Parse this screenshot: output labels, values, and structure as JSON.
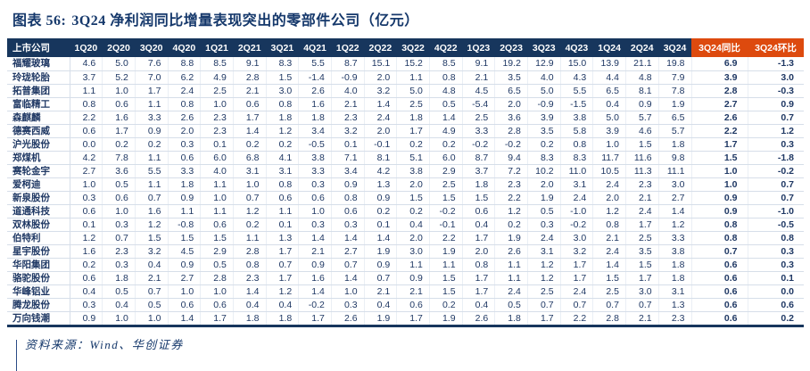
{
  "header": {
    "figure_label": "图表 56:",
    "title": "3Q24 净利润同比增量表现突出的零部件公司（亿元）"
  },
  "footer": {
    "source": "资料来源：Wind、华创证券"
  },
  "colors": {
    "header_bg": "#17365D",
    "highlight_bg": "#DD4A0E",
    "text": "#1F3864",
    "title": "#15386B"
  },
  "chart_data": {
    "type": "table",
    "title": "3Q24 净利润同比增量表现突出的零部件公司（亿元）",
    "unit": "亿元",
    "columns": [
      "上市公司",
      "1Q20",
      "2Q20",
      "3Q20",
      "4Q20",
      "1Q21",
      "2Q21",
      "3Q21",
      "4Q21",
      "1Q22",
      "2Q22",
      "3Q22",
      "4Q22",
      "1Q23",
      "2Q23",
      "3Q23",
      "4Q23",
      "1Q24",
      "2Q24",
      "3Q24",
      "3Q24同比",
      "3Q24环比"
    ],
    "highlight_columns": [
      "3Q24同比",
      "3Q24环比"
    ],
    "rows": [
      {
        "name": "福耀玻璃",
        "values": [
          4.6,
          5.0,
          7.6,
          8.8,
          8.5,
          9.1,
          8.3,
          5.5,
          8.7,
          15.1,
          15.2,
          8.5,
          9.1,
          19.2,
          12.9,
          15.0,
          13.9,
          21.1,
          19.8,
          6.9,
          -1.3
        ]
      },
      {
        "name": "玲珑轮胎",
        "values": [
          3.7,
          5.2,
          7.0,
          6.2,
          4.9,
          2.8,
          1.5,
          -1.4,
          -0.9,
          2.0,
          1.1,
          0.8,
          2.1,
          3.5,
          4.0,
          4.3,
          4.4,
          4.8,
          7.9,
          3.9,
          3.0
        ]
      },
      {
        "name": "拓普集团",
        "values": [
          1.1,
          1.0,
          1.7,
          2.4,
          2.5,
          2.1,
          3.0,
          2.6,
          4.0,
          3.2,
          5.0,
          4.8,
          4.5,
          6.5,
          5.0,
          5.5,
          6.5,
          8.1,
          7.8,
          2.8,
          -0.3
        ]
      },
      {
        "name": "富临精工",
        "values": [
          0.8,
          0.6,
          1.1,
          0.8,
          1.0,
          0.6,
          0.8,
          1.6,
          2.1,
          1.4,
          2.5,
          0.5,
          -5.4,
          2.0,
          -0.9,
          -1.5,
          0.4,
          0.9,
          1.9,
          2.7,
          0.9
        ]
      },
      {
        "name": "森麒麟",
        "values": [
          2.2,
          1.6,
          3.3,
          2.6,
          2.3,
          1.7,
          1.8,
          1.8,
          2.3,
          2.4,
          1.8,
          1.4,
          2.5,
          3.6,
          3.9,
          3.8,
          5.0,
          5.7,
          6.5,
          2.6,
          0.7
        ]
      },
      {
        "name": "德赛西威",
        "values": [
          0.6,
          1.7,
          0.9,
          2.0,
          2.3,
          1.4,
          1.2,
          3.4,
          3.2,
          2.0,
          1.7,
          4.9,
          3.3,
          2.8,
          3.5,
          5.8,
          3.9,
          4.6,
          5.7,
          2.2,
          1.2
        ]
      },
      {
        "name": "沪光股份",
        "values": [
          0.0,
          0.2,
          0.2,
          0.3,
          0.1,
          0.2,
          0.2,
          -0.5,
          0.1,
          -0.1,
          0.2,
          0.2,
          -0.2,
          -0.2,
          0.2,
          0.8,
          1.0,
          1.5,
          1.8,
          1.7,
          0.3
        ]
      },
      {
        "name": "郑煤机",
        "values": [
          4.2,
          7.8,
          1.1,
          0.6,
          6.0,
          6.8,
          4.1,
          3.8,
          7.1,
          8.1,
          5.1,
          6.0,
          8.7,
          9.4,
          8.3,
          8.3,
          11.7,
          11.6,
          9.8,
          1.5,
          -1.8
        ]
      },
      {
        "name": "赛轮金宇",
        "values": [
          2.7,
          3.6,
          5.5,
          3.3,
          4.0,
          3.1,
          3.1,
          3.3,
          3.4,
          4.2,
          3.8,
          2.9,
          3.7,
          7.2,
          10.2,
          11.0,
          10.5,
          11.3,
          11.1,
          1.0,
          -0.2
        ]
      },
      {
        "name": "爱柯迪",
        "values": [
          1.0,
          0.5,
          1.1,
          1.8,
          1.1,
          1.0,
          0.8,
          0.3,
          0.9,
          1.3,
          2.0,
          2.5,
          1.8,
          2.3,
          2.0,
          3.1,
          2.4,
          2.3,
          3.0,
          1.0,
          0.7
        ]
      },
      {
        "name": "新泉股份",
        "values": [
          0.3,
          0.6,
          0.7,
          0.9,
          1.0,
          0.7,
          0.6,
          0.6,
          0.8,
          0.9,
          1.5,
          1.5,
          1.5,
          2.2,
          1.9,
          2.4,
          2.0,
          2.1,
          2.7,
          0.9,
          0.7
        ]
      },
      {
        "name": "道通科技",
        "values": [
          0.6,
          1.0,
          1.6,
          1.1,
          1.1,
          1.2,
          1.1,
          1.0,
          0.6,
          0.2,
          0.2,
          -0.2,
          0.6,
          1.2,
          0.5,
          -1.0,
          1.2,
          2.4,
          1.4,
          0.9,
          -1.0
        ]
      },
      {
        "name": "双林股份",
        "values": [
          0.1,
          0.3,
          1.2,
          -0.8,
          0.6,
          0.2,
          0.1,
          0.3,
          0.3,
          0.1,
          0.4,
          -0.1,
          0.4,
          0.2,
          0.3,
          -0.2,
          0.8,
          1.7,
          1.2,
          0.8,
          -0.5
        ]
      },
      {
        "name": "伯特利",
        "values": [
          1.2,
          0.7,
          1.5,
          1.5,
          1.5,
          1.1,
          1.3,
          1.4,
          1.4,
          1.4,
          2.0,
          2.2,
          1.7,
          1.9,
          2.4,
          3.0,
          2.1,
          2.5,
          3.3,
          0.8,
          0.8
        ]
      },
      {
        "name": "星宇股份",
        "values": [
          1.6,
          2.3,
          3.2,
          4.5,
          2.9,
          2.8,
          1.7,
          2.1,
          2.7,
          1.9,
          3.0,
          1.9,
          2.0,
          2.6,
          3.1,
          3.2,
          2.4,
          3.5,
          3.8,
          0.7,
          0.3
        ]
      },
      {
        "name": "华阳集团",
        "values": [
          0.2,
          0.3,
          0.4,
          0.9,
          0.5,
          0.8,
          0.7,
          0.9,
          0.7,
          0.9,
          1.1,
          1.1,
          0.8,
          1.1,
          1.2,
          1.7,
          1.4,
          1.5,
          1.8,
          0.6,
          0.3
        ]
      },
      {
        "name": "骆驼股份",
        "values": [
          0.6,
          1.8,
          2.1,
          2.7,
          2.8,
          2.3,
          1.7,
          1.6,
          1.4,
          0.7,
          0.9,
          1.5,
          1.7,
          1.1,
          1.2,
          1.7,
          1.5,
          1.7,
          1.8,
          0.6,
          0.1
        ]
      },
      {
        "name": "华峰铝业",
        "values": [
          0.4,
          0.5,
          0.7,
          1.0,
          1.0,
          1.4,
          1.2,
          1.4,
          1.0,
          2.1,
          2.1,
          1.5,
          1.7,
          2.4,
          2.5,
          2.4,
          2.5,
          3.0,
          3.1,
          0.6,
          0.0
        ]
      },
      {
        "name": "腾龙股份",
        "values": [
          0.3,
          0.4,
          0.5,
          0.6,
          0.6,
          0.4,
          0.4,
          -0.2,
          0.3,
          0.4,
          0.6,
          0.2,
          0.4,
          0.5,
          0.7,
          0.7,
          0.7,
          0.7,
          1.3,
          0.6,
          0.6
        ]
      },
      {
        "name": "万向钱潮",
        "values": [
          0.9,
          1.0,
          1.0,
          1.4,
          1.7,
          1.8,
          1.8,
          1.7,
          2.6,
          1.9,
          1.7,
          1.9,
          2.6,
          1.8,
          1.7,
          2.2,
          2.8,
          2.1,
          2.3,
          0.6,
          0.2
        ]
      }
    ]
  }
}
